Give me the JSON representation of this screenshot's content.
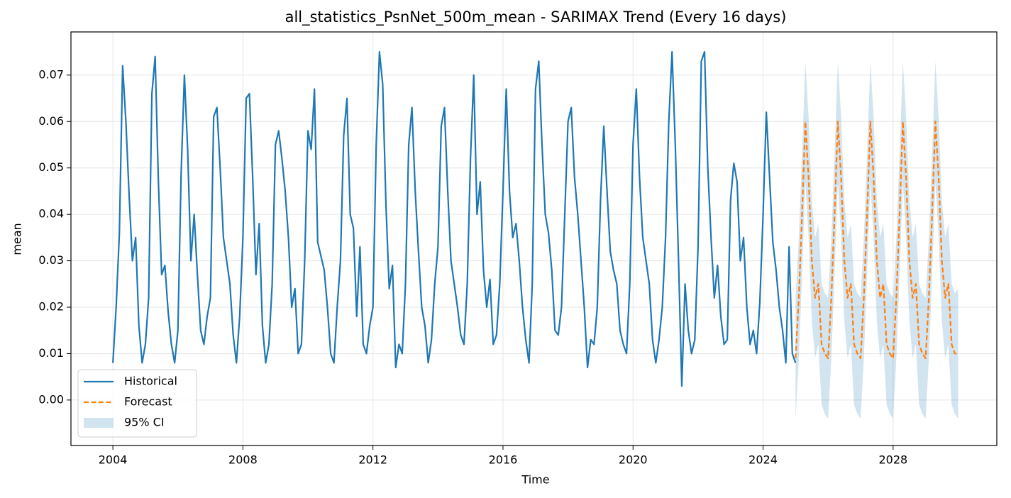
{
  "chart_data": {
    "type": "line",
    "title": "all_statistics_PsnNet_500m_mean - SARIMAX Trend (Every 16 days)",
    "xlabel": "Time",
    "ylabel": "mean",
    "xlim": [
      2002.71,
      2031.19
    ],
    "ylim": [
      -0.0098,
      0.0793
    ],
    "xticks": [
      2004,
      2008,
      2012,
      2016,
      2020,
      2024,
      2028
    ],
    "yticks": [
      {
        "value": 0,
        "label": "0.00"
      },
      {
        "value": 0.01,
        "label": "0.01"
      },
      {
        "value": 0.02,
        "label": "0.02"
      },
      {
        "value": 0.03,
        "label": "0.03"
      },
      {
        "value": 0.04,
        "label": "0.04"
      },
      {
        "value": 0.05,
        "label": "0.05"
      },
      {
        "value": 0.06,
        "label": "0.06"
      },
      {
        "value": 0.07,
        "label": "0.07"
      }
    ],
    "grid": true,
    "legend": "lower left",
    "series": [
      {
        "name": "Historical",
        "color": "#1f77b4",
        "linestyle": "solid",
        "x": [
          2004.0,
          2004.1,
          2004.2,
          2004.3,
          2004.4,
          2004.5,
          2004.6,
          2004.7,
          2004.8,
          2004.9,
          2005.0,
          2005.1,
          2005.2,
          2005.3,
          2005.4,
          2005.5,
          2005.6,
          2005.7,
          2005.8,
          2005.9,
          2006.0,
          2006.1,
          2006.2,
          2006.3,
          2006.4,
          2006.5,
          2006.6,
          2006.7,
          2006.8,
          2006.9,
          2007.0,
          2007.1,
          2007.2,
          2007.3,
          2007.4,
          2007.5,
          2007.6,
          2007.7,
          2007.8,
          2007.9,
          2008.0,
          2008.1,
          2008.2,
          2008.3,
          2008.4,
          2008.5,
          2008.6,
          2008.7,
          2008.8,
          2008.9,
          2009.0,
          2009.1,
          2009.2,
          2009.3,
          2009.4,
          2009.5,
          2009.6,
          2009.7,
          2009.8,
          2009.9,
          2010.0,
          2010.1,
          2010.2,
          2010.3,
          2010.4,
          2010.5,
          2010.6,
          2010.7,
          2010.8,
          2010.9,
          2011.0,
          2011.1,
          2011.2,
          2011.3,
          2011.4,
          2011.5,
          2011.6,
          2011.7,
          2011.8,
          2011.9,
          2012.0,
          2012.1,
          2012.2,
          2012.3,
          2012.4,
          2012.5,
          2012.6,
          2012.7,
          2012.8,
          2012.9,
          2013.0,
          2013.1,
          2013.2,
          2013.3,
          2013.4,
          2013.5,
          2013.6,
          2013.7,
          2013.8,
          2013.9,
          2014.0,
          2014.1,
          2014.2,
          2014.3,
          2014.4,
          2014.5,
          2014.6,
          2014.7,
          2014.8,
          2014.9,
          2015.0,
          2015.1,
          2015.2,
          2015.3,
          2015.4,
          2015.5,
          2015.6,
          2015.7,
          2015.8,
          2015.9,
          2016.0,
          2016.1,
          2016.2,
          2016.3,
          2016.4,
          2016.5,
          2016.6,
          2016.7,
          2016.8,
          2016.9,
          2017.0,
          2017.1,
          2017.2,
          2017.3,
          2017.4,
          2017.5,
          2017.6,
          2017.7,
          2017.8,
          2017.9,
          2018.0,
          2018.1,
          2018.2,
          2018.3,
          2018.4,
          2018.5,
          2018.6,
          2018.7,
          2018.8,
          2018.9,
          2019.0,
          2019.1,
          2019.2,
          2019.3,
          2019.4,
          2019.5,
          2019.6,
          2019.7,
          2019.8,
          2019.9,
          2020.0,
          2020.1,
          2020.2,
          2020.3,
          2020.4,
          2020.5,
          2020.6,
          2020.7,
          2020.8,
          2020.9,
          2021.0,
          2021.1,
          2021.2,
          2021.3,
          2021.4,
          2021.5,
          2021.6,
          2021.7,
          2021.8,
          2021.9,
          2022.0,
          2022.1,
          2022.2,
          2022.3,
          2022.4,
          2022.5,
          2022.6,
          2022.7,
          2022.8,
          2022.9,
          2023.0,
          2023.1,
          2023.2,
          2023.3,
          2023.4,
          2023.5,
          2023.6,
          2023.7,
          2023.8,
          2023.9,
          2024.0,
          2024.1,
          2024.2,
          2024.3,
          2024.4,
          2024.5,
          2024.6,
          2024.7,
          2024.8,
          2024.9,
          2025.0
        ],
        "values": [
          0.008,
          0.02,
          0.036,
          0.072,
          0.06,
          0.044,
          0.03,
          0.035,
          0.016,
          0.008,
          0.012,
          0.022,
          0.066,
          0.074,
          0.047,
          0.027,
          0.029,
          0.019,
          0.012,
          0.008,
          0.015,
          0.049,
          0.07,
          0.054,
          0.03,
          0.04,
          0.027,
          0.015,
          0.012,
          0.018,
          0.022,
          0.061,
          0.063,
          0.05,
          0.035,
          0.03,
          0.025,
          0.014,
          0.008,
          0.018,
          0.035,
          0.065,
          0.066,
          0.048,
          0.027,
          0.038,
          0.016,
          0.008,
          0.012,
          0.025,
          0.055,
          0.058,
          0.052,
          0.045,
          0.035,
          0.02,
          0.024,
          0.01,
          0.012,
          0.03,
          0.058,
          0.054,
          0.067,
          0.034,
          0.031,
          0.028,
          0.02,
          0.01,
          0.008,
          0.02,
          0.03,
          0.057,
          0.065,
          0.04,
          0.037,
          0.018,
          0.033,
          0.012,
          0.01,
          0.016,
          0.02,
          0.055,
          0.075,
          0.068,
          0.042,
          0.024,
          0.029,
          0.007,
          0.012,
          0.01,
          0.025,
          0.055,
          0.063,
          0.045,
          0.032,
          0.02,
          0.016,
          0.008,
          0.013,
          0.025,
          0.033,
          0.059,
          0.063,
          0.045,
          0.03,
          0.025,
          0.02,
          0.014,
          0.012,
          0.025,
          0.052,
          0.07,
          0.04,
          0.047,
          0.028,
          0.02,
          0.026,
          0.012,
          0.014,
          0.025,
          0.045,
          0.067,
          0.045,
          0.035,
          0.038,
          0.03,
          0.02,
          0.013,
          0.008,
          0.025,
          0.067,
          0.073,
          0.055,
          0.04,
          0.036,
          0.028,
          0.015,
          0.014,
          0.02,
          0.04,
          0.06,
          0.063,
          0.048,
          0.04,
          0.03,
          0.02,
          0.007,
          0.013,
          0.012,
          0.02,
          0.043,
          0.059,
          0.045,
          0.032,
          0.028,
          0.025,
          0.015,
          0.012,
          0.01,
          0.025,
          0.055,
          0.067,
          0.048,
          0.035,
          0.03,
          0.025,
          0.013,
          0.008,
          0.013,
          0.02,
          0.035,
          0.06,
          0.075,
          0.055,
          0.03,
          0.003,
          0.025,
          0.015,
          0.01,
          0.013,
          0.033,
          0.073,
          0.075,
          0.05,
          0.035,
          0.022,
          0.029,
          0.018,
          0.012,
          0.013,
          0.043,
          0.051,
          0.047,
          0.03,
          0.035,
          0.02,
          0.012,
          0.015,
          0.01,
          0.021,
          0.04,
          0.062,
          0.048,
          0.034,
          0.028,
          0.02,
          0.015,
          0.008,
          0.033,
          0.01,
          0.008
        ]
      },
      {
        "name": "Forecast",
        "color": "#ff7f0e",
        "linestyle": "dashed",
        "x": [
          2025.0,
          2025.1,
          2025.2,
          2025.3,
          2025.4,
          2025.5,
          2025.6,
          2025.7,
          2025.8,
          2025.9,
          2026.0,
          2026.1,
          2026.2,
          2026.3,
          2026.4,
          2026.5,
          2026.6,
          2026.7,
          2026.8,
          2026.9,
          2027.0,
          2027.1,
          2027.2,
          2027.3,
          2027.4,
          2027.5,
          2027.6,
          2027.7,
          2027.8,
          2027.9,
          2028.0,
          2028.1,
          2028.2,
          2028.3,
          2028.4,
          2028.5,
          2028.6,
          2028.7,
          2028.8,
          2028.9,
          2029.0,
          2029.1,
          2029.2,
          2029.3,
          2029.4,
          2029.5,
          2029.6,
          2029.7,
          2029.8,
          2029.9,
          2030.0
        ],
        "values": [
          0.009,
          0.022,
          0.04,
          0.06,
          0.048,
          0.03,
          0.022,
          0.025,
          0.012,
          0.01,
          0.009,
          0.022,
          0.04,
          0.06,
          0.048,
          0.03,
          0.022,
          0.025,
          0.012,
          0.01,
          0.009,
          0.022,
          0.04,
          0.06,
          0.048,
          0.03,
          0.022,
          0.025,
          0.012,
          0.01,
          0.009,
          0.022,
          0.04,
          0.06,
          0.048,
          0.03,
          0.022,
          0.025,
          0.012,
          0.01,
          0.009,
          0.022,
          0.04,
          0.06,
          0.048,
          0.03,
          0.022,
          0.025,
          0.012,
          0.01,
          0.01
        ]
      }
    ],
    "ci": {
      "name": "95% CI",
      "color": "#1f77b4",
      "x": [
        2025.0,
        2025.1,
        2025.2,
        2025.3,
        2025.4,
        2025.5,
        2025.6,
        2025.7,
        2025.8,
        2025.9,
        2026.0,
        2026.1,
        2026.2,
        2026.3,
        2026.4,
        2026.5,
        2026.6,
        2026.7,
        2026.8,
        2026.9,
        2027.0,
        2027.1,
        2027.2,
        2027.3,
        2027.4,
        2027.5,
        2027.6,
        2027.7,
        2027.8,
        2027.9,
        2028.0,
        2028.1,
        2028.2,
        2028.3,
        2028.4,
        2028.5,
        2028.6,
        2028.7,
        2028.8,
        2028.9,
        2029.0,
        2029.1,
        2029.2,
        2029.3,
        2029.4,
        2029.5,
        2029.6,
        2029.7,
        2029.8,
        2029.9,
        2030.0
      ],
      "lower": [
        -0.004,
        0.009,
        0.027,
        0.047,
        0.035,
        0.017,
        0.009,
        0.012,
        -0.001,
        -0.003,
        -0.004,
        0.009,
        0.027,
        0.047,
        0.035,
        0.017,
        0.009,
        0.012,
        -0.001,
        -0.003,
        -0.004,
        0.009,
        0.027,
        0.047,
        0.035,
        0.017,
        0.009,
        0.012,
        -0.001,
        -0.003,
        -0.004,
        0.009,
        0.027,
        0.047,
        0.035,
        0.017,
        0.009,
        0.012,
        -0.001,
        -0.003,
        -0.004,
        0.009,
        0.027,
        0.047,
        0.035,
        0.017,
        0.009,
        0.012,
        -0.001,
        -0.003,
        -0.004
      ],
      "upper": [
        0.022,
        0.035,
        0.053,
        0.073,
        0.061,
        0.043,
        0.035,
        0.038,
        0.025,
        0.023,
        0.022,
        0.035,
        0.053,
        0.073,
        0.061,
        0.043,
        0.035,
        0.038,
        0.025,
        0.023,
        0.022,
        0.035,
        0.053,
        0.073,
        0.061,
        0.043,
        0.035,
        0.038,
        0.025,
        0.023,
        0.022,
        0.035,
        0.053,
        0.073,
        0.061,
        0.043,
        0.035,
        0.038,
        0.025,
        0.023,
        0.022,
        0.035,
        0.053,
        0.073,
        0.061,
        0.043,
        0.035,
        0.038,
        0.025,
        0.023,
        0.024
      ]
    }
  }
}
